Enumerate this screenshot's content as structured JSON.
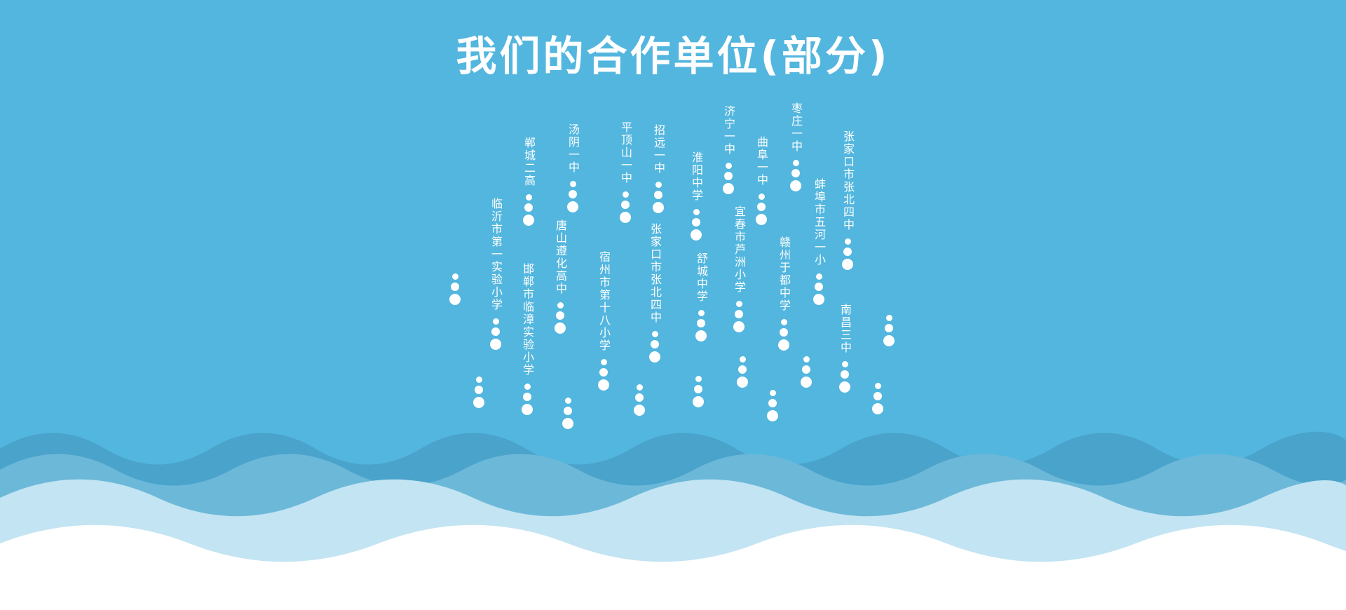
{
  "title": "我们的合作单位(部分)",
  "colors": {
    "background": "#53b6de",
    "wave_dark": "#4aa3cb",
    "wave_mid": "#6cb8d9",
    "wave_light": "#c3e4f2",
    "wave_white": "#ffffff",
    "text": "#ffffff"
  },
  "schools": [
    "临沂市第一实验小学",
    "郸城二高",
    "邯郸市临漳实验小学",
    "汤阴一中",
    "唐山遵化高中",
    "平顶山一中",
    "宿州市第十八小学",
    "招远一中",
    "张家口市张北四中",
    "淮阳中学",
    "舒城中学",
    "济宁一中",
    "宜春市芦洲小学",
    "曲阜一中",
    "枣庄一中",
    "赣州于都中学",
    "蚌埠市五河一小",
    "张家口市张北四中",
    "南昌三中"
  ]
}
